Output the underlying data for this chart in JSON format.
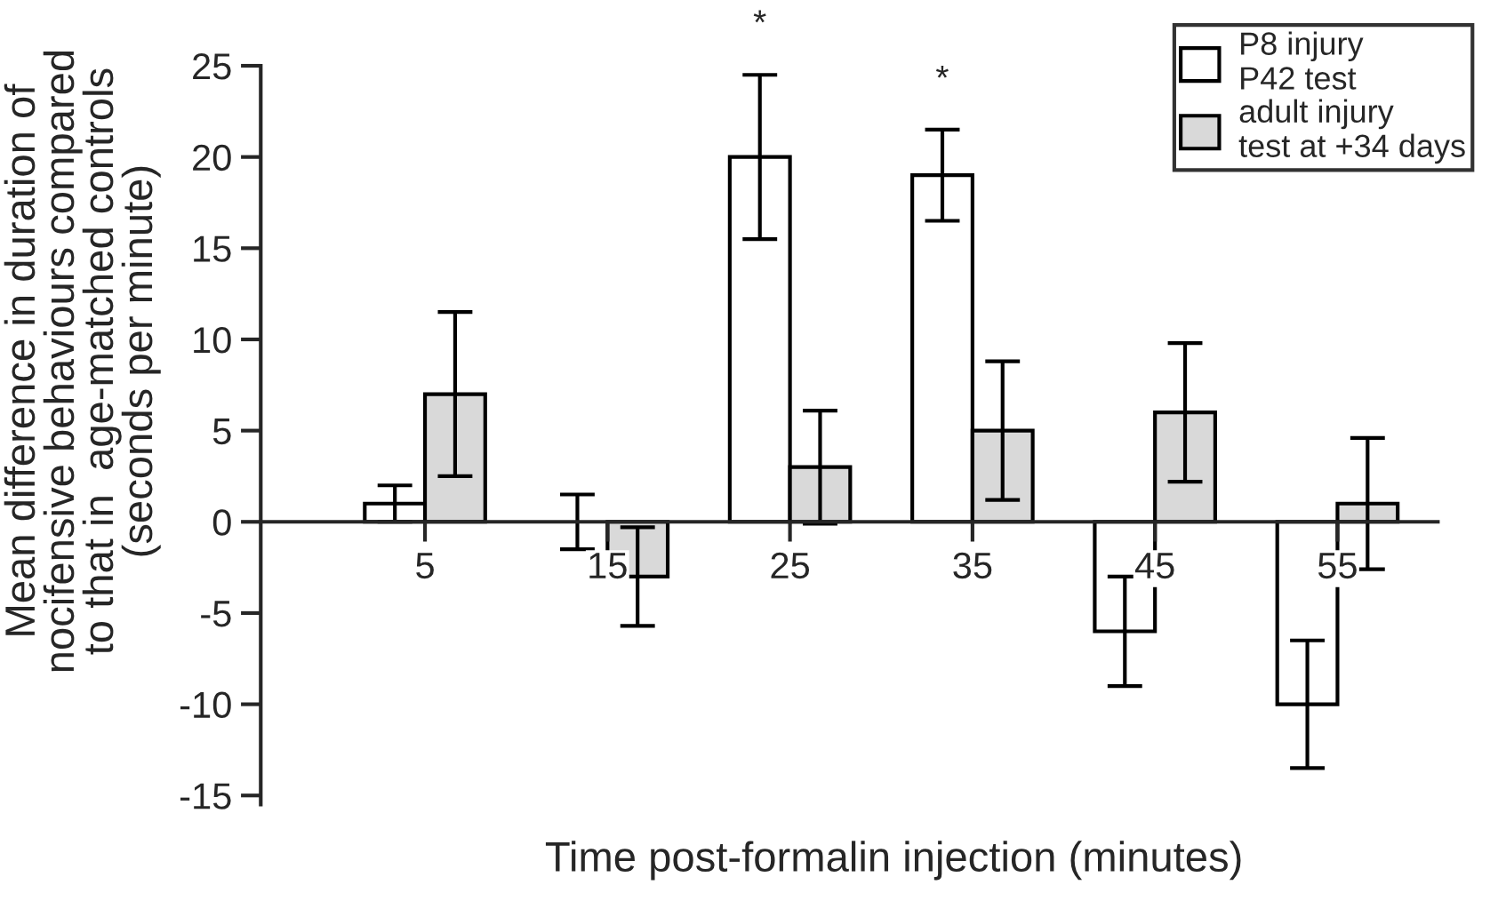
{
  "chart_data": {
    "type": "bar",
    "xlabel": "Time post-formalin injection (minutes)",
    "ylabel": "Mean difference in duration of\nnocifensive behaviours compared\nto that in  age-matched controls\n(seconds per minute)",
    "categories": [
      "5",
      "15",
      "25",
      "35",
      "45",
      "55"
    ],
    "series": [
      {
        "name": "P8 injury\nP42 test",
        "color": "#ffffff",
        "values": [
          1,
          0,
          20,
          19,
          -6,
          -10
        ],
        "errors": [
          1,
          1.5,
          4.5,
          2.5,
          3,
          3.5
        ]
      },
      {
        "name": "adult injury\ntest at +34 days",
        "color": "#d9d9d9",
        "values": [
          7,
          -3,
          3,
          5,
          6,
          1
        ],
        "errors": [
          4.5,
          2.7,
          3.1,
          3.8,
          3.8,
          3.6
        ]
      }
    ],
    "ylim": [
      -15.5,
      25
    ],
    "yticks": [
      -15,
      -10,
      -5,
      0,
      5,
      10,
      15,
      20,
      25
    ],
    "annotations": [
      "*",
      "*"
    ],
    "legend": "top right",
    "grid": false
  }
}
